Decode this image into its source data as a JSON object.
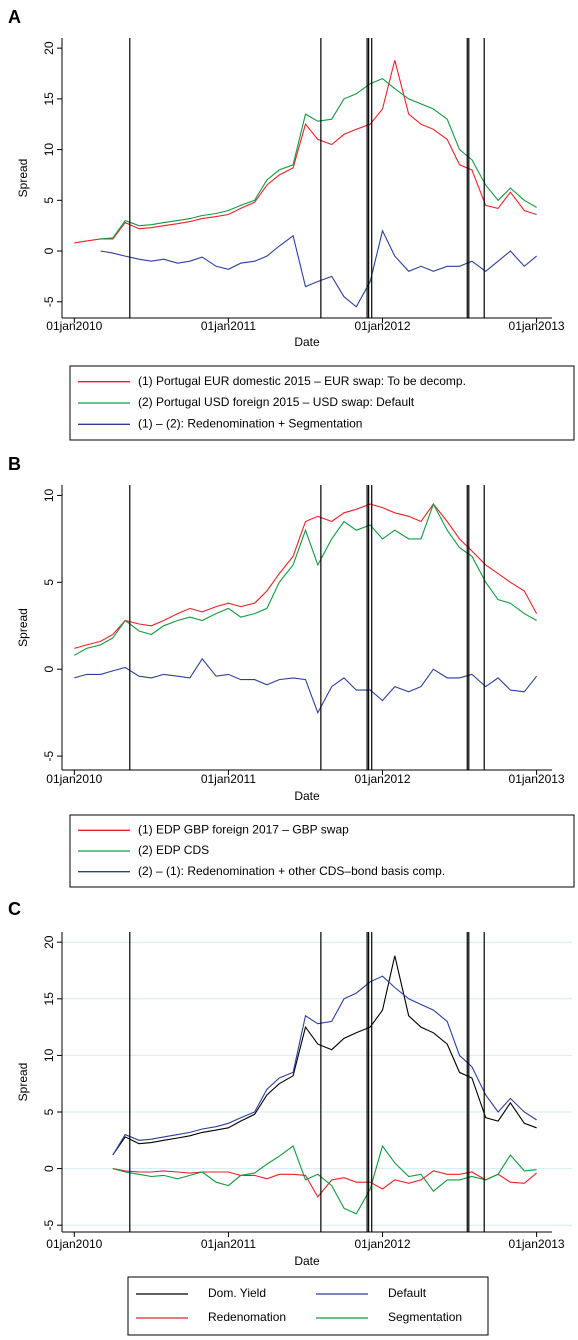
{
  "chart_data": [
    {
      "type": "line",
      "panel": "A",
      "xlabel": "Date",
      "ylabel": "Spread",
      "x": [
        2010,
        2010.08,
        2010.17,
        2010.25,
        2010.33,
        2010.42,
        2010.5,
        2010.58,
        2010.67,
        2010.75,
        2010.83,
        2010.92,
        2011,
        2011.08,
        2011.17,
        2011.25,
        2011.33,
        2011.42,
        2011.5,
        2011.58,
        2011.67,
        2011.75,
        2011.83,
        2011.92,
        2012,
        2012.08,
        2012.17,
        2012.25,
        2012.33,
        2012.42,
        2012.5,
        2012.58,
        2012.67,
        2012.75,
        2012.83,
        2012.92,
        2013
      ],
      "series": [
        {
          "name": "(1) Portugal EUR domestic 2015 – EUR swap: To be decomp.",
          "color": "#e8222a",
          "values": [
            0.8,
            1.0,
            1.2,
            1.2,
            2.8,
            2.2,
            2.3,
            2.5,
            2.7,
            2.9,
            3.2,
            3.4,
            3.6,
            4.2,
            4.8,
            6.5,
            7.5,
            8.2,
            12.5,
            11.0,
            10.5,
            11.5,
            12.0,
            12.5,
            14.0,
            18.8,
            13.5,
            12.5,
            12.0,
            11.0,
            8.5,
            8.0,
            4.5,
            4.2,
            5.8,
            4.0,
            3.6
          ]
        },
        {
          "name": "(2) Portugal USD foreign 2015 – USD swap: Default",
          "color": "#119a3e",
          "values": [
            null,
            null,
            1.2,
            1.3,
            3.0,
            2.5,
            2.6,
            2.8,
            3.0,
            3.2,
            3.5,
            3.7,
            4.0,
            4.5,
            5.0,
            7.0,
            8.0,
            8.5,
            13.5,
            12.8,
            13.0,
            15.0,
            15.5,
            16.5,
            17.0,
            16.0,
            15.0,
            14.5,
            14.0,
            13.0,
            10.0,
            9.0,
            6.5,
            5.0,
            6.2,
            5.0,
            4.3
          ]
        },
        {
          "name": "(1) – (2): Redenomination + Segmentation",
          "color": "#2b3f99",
          "values": [
            null,
            null,
            0.0,
            -0.2,
            -0.5,
            -0.8,
            -1.0,
            -0.8,
            -1.2,
            -1.0,
            -0.6,
            -1.5,
            -1.8,
            -1.2,
            -1.0,
            -0.5,
            0.5,
            1.5,
            -3.5,
            -3.0,
            -2.5,
            -4.5,
            -5.5,
            -3.0,
            2.0,
            -0.5,
            -2.0,
            -1.5,
            -2.0,
            -1.5,
            -1.5,
            -1.0,
            -2.0,
            -1.0,
            0.0,
            -1.5,
            -0.5
          ]
        }
      ],
      "xlim": [
        2009.92,
        2013.1
      ],
      "ylim": [
        -6.6,
        21
      ],
      "xticks": [
        {
          "value": 2010,
          "label": "01jan2010"
        },
        {
          "value": 2011,
          "label": "01jan2011"
        },
        {
          "value": 2012,
          "label": "01jan2012"
        },
        {
          "value": 2013,
          "label": "01jan2013"
        }
      ],
      "yticks": [
        -5,
        0,
        5,
        10,
        15,
        20
      ],
      "grid": false,
      "legend_columns": 1,
      "vlines": [
        2010.36,
        2011.6,
        2011.9,
        2011.91,
        2011.93,
        2012.55,
        2012.56,
        2012.66
      ]
    },
    {
      "type": "line",
      "panel": "B",
      "xlabel": "Date",
      "ylabel": "Spread",
      "x": [
        2010,
        2010.08,
        2010.17,
        2010.25,
        2010.33,
        2010.42,
        2010.5,
        2010.58,
        2010.67,
        2010.75,
        2010.83,
        2010.92,
        2011,
        2011.08,
        2011.17,
        2011.25,
        2011.33,
        2011.42,
        2011.5,
        2011.58,
        2011.67,
        2011.75,
        2011.83,
        2011.92,
        2012,
        2012.08,
        2012.17,
        2012.25,
        2012.33,
        2012.42,
        2012.5,
        2012.58,
        2012.67,
        2012.75,
        2012.83,
        2012.92,
        2013
      ],
      "series": [
        {
          "name": "(1) EDP GBP foreign 2017 – GBP swap",
          "color": "#e8222a",
          "values": [
            1.2,
            1.4,
            1.6,
            2.0,
            2.8,
            2.6,
            2.5,
            2.8,
            3.2,
            3.5,
            3.3,
            3.6,
            3.8,
            3.6,
            3.8,
            4.5,
            5.5,
            6.5,
            8.5,
            8.8,
            8.5,
            9.0,
            9.2,
            9.5,
            9.3,
            9.0,
            8.8,
            8.5,
            9.5,
            8.5,
            7.5,
            6.8,
            6.0,
            5.5,
            5.0,
            4.5,
            3.2
          ]
        },
        {
          "name": "(2) EDP CDS",
          "color": "#119a3e",
          "values": [
            0.8,
            1.2,
            1.4,
            1.8,
            2.8,
            2.2,
            2.0,
            2.5,
            2.8,
            3.0,
            2.8,
            3.2,
            3.5,
            3.0,
            3.2,
            3.5,
            5.0,
            6.0,
            8.0,
            6.0,
            7.5,
            8.5,
            8.0,
            8.3,
            7.5,
            8.0,
            7.5,
            7.5,
            9.5,
            8.0,
            7.0,
            6.5,
            5.0,
            4.0,
            3.8,
            3.2,
            2.8
          ]
        },
        {
          "name": "(2) – (1): Redenomination + other CDS–bond basis comp.",
          "color": "#2b3f99",
          "values": [
            -0.5,
            -0.3,
            -0.3,
            -0.1,
            0.1,
            -0.4,
            -0.5,
            -0.3,
            -0.4,
            -0.5,
            0.6,
            -0.4,
            -0.3,
            -0.6,
            -0.6,
            -0.9,
            -0.6,
            -0.5,
            -0.6,
            -2.5,
            -1.0,
            -0.5,
            -1.2,
            -1.2,
            -1.8,
            -1.0,
            -1.3,
            -1.0,
            0.0,
            -0.5,
            -0.5,
            -0.3,
            -1.0,
            -0.5,
            -1.2,
            -1.3,
            -0.4
          ]
        }
      ],
      "xlim": [
        2009.92,
        2013.1
      ],
      "ylim": [
        -5.8,
        10.6
      ],
      "xticks": [
        {
          "value": 2010,
          "label": "01jan2010"
        },
        {
          "value": 2011,
          "label": "01jan2011"
        },
        {
          "value": 2012,
          "label": "01jan2012"
        },
        {
          "value": 2013,
          "label": "01jan2013"
        }
      ],
      "yticks": [
        -5,
        0,
        5,
        10
      ],
      "grid": false,
      "legend_columns": 1,
      "vlines": [
        2010.36,
        2011.6,
        2011.9,
        2011.91,
        2011.93,
        2012.55,
        2012.56,
        2012.66
      ]
    },
    {
      "type": "line",
      "panel": "C",
      "xlabel": "Date",
      "ylabel": "Spread",
      "x": [
        2010,
        2010.08,
        2010.17,
        2010.25,
        2010.33,
        2010.42,
        2010.5,
        2010.58,
        2010.67,
        2010.75,
        2010.83,
        2010.92,
        2011,
        2011.08,
        2011.17,
        2011.25,
        2011.33,
        2011.42,
        2011.5,
        2011.58,
        2011.67,
        2011.75,
        2011.83,
        2011.92,
        2012,
        2012.08,
        2012.17,
        2012.25,
        2012.33,
        2012.42,
        2012.5,
        2012.58,
        2012.67,
        2012.75,
        2012.83,
        2012.92,
        2013
      ],
      "series": [
        {
          "name": "Dom. Yield",
          "color": "#000000",
          "values": [
            null,
            null,
            null,
            1.2,
            2.8,
            2.2,
            2.3,
            2.5,
            2.7,
            2.9,
            3.2,
            3.4,
            3.6,
            4.2,
            4.8,
            6.5,
            7.5,
            8.2,
            12.5,
            11.0,
            10.5,
            11.5,
            12.0,
            12.5,
            14.0,
            18.8,
            13.5,
            12.5,
            12.0,
            11.0,
            8.5,
            8.0,
            4.5,
            4.2,
            5.8,
            4.0,
            3.6
          ]
        },
        {
          "name": "Default",
          "color": "#2b3f99",
          "values": [
            null,
            null,
            null,
            1.2,
            3.0,
            2.5,
            2.6,
            2.8,
            3.0,
            3.2,
            3.5,
            3.7,
            4.0,
            4.5,
            5.0,
            7.0,
            8.0,
            8.5,
            13.5,
            12.8,
            13.0,
            15.0,
            15.5,
            16.5,
            17.0,
            16.0,
            15.0,
            14.5,
            14.0,
            13.0,
            10.0,
            9.0,
            6.5,
            5.0,
            6.2,
            5.0,
            4.3
          ]
        },
        {
          "name": "Redenomation",
          "color": "#e8222a",
          "values": [
            null,
            null,
            null,
            0.0,
            -0.2,
            -0.3,
            -0.3,
            -0.2,
            -0.3,
            -0.4,
            -0.3,
            -0.3,
            -0.3,
            -0.6,
            -0.6,
            -0.9,
            -0.5,
            -0.5,
            -0.6,
            -2.5,
            -1.0,
            -0.8,
            -1.2,
            -1.2,
            -1.8,
            -1.0,
            -1.3,
            -1.0,
            -0.2,
            -0.5,
            -0.5,
            -0.3,
            -1.0,
            -0.5,
            -1.2,
            -1.3,
            -0.4
          ]
        },
        {
          "name": "Segmentation",
          "color": "#119a3e",
          "values": [
            null,
            null,
            null,
            0.0,
            -0.3,
            -0.5,
            -0.7,
            -0.6,
            -0.9,
            -0.6,
            -0.3,
            -1.2,
            -1.5,
            -0.6,
            -0.4,
            0.4,
            1.1,
            2.0,
            -1.0,
            -0.5,
            -1.5,
            -3.5,
            -4.0,
            -1.8,
            2.0,
            0.5,
            -0.7,
            -0.5,
            -2.0,
            -1.0,
            -1.0,
            -0.7,
            -1.0,
            -0.5,
            1.2,
            -0.2,
            -0.1
          ]
        }
      ],
      "xlim": [
        2009.92,
        2013.1
      ],
      "ylim": [
        -5.6,
        20.9
      ],
      "xticks": [
        {
          "value": 2010,
          "label": "01jan2010"
        },
        {
          "value": 2011,
          "label": "01jan2011"
        },
        {
          "value": 2012,
          "label": "01jan2012"
        },
        {
          "value": 2013,
          "label": "01jan2013"
        }
      ],
      "yticks": [
        -5,
        0,
        5,
        10,
        15,
        20
      ],
      "grid": true,
      "grid_color": "#d4ebf2",
      "legend_columns": 2,
      "vlines": [
        2010.36,
        2011.6,
        2011.9,
        2011.91,
        2011.93,
        2012.55,
        2012.56,
        2012.66
      ]
    }
  ]
}
